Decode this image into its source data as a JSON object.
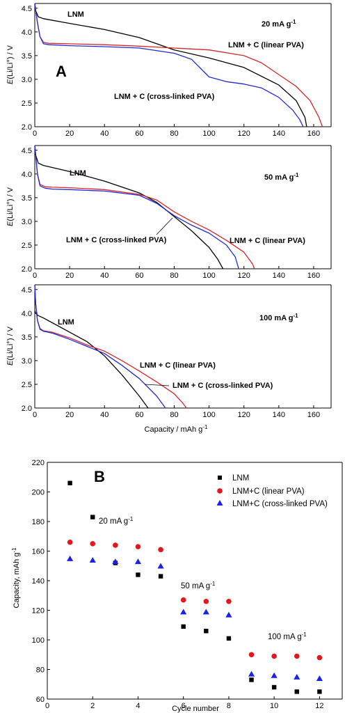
{
  "chart_data": [
    {
      "type": "line",
      "panel": "A",
      "rate_label": "20 mA g-1",
      "ylabel": "E(Li/Li+) / V",
      "xlim": [
        0,
        170
      ],
      "ylim": [
        2.0,
        4.6
      ],
      "xticks": [
        0,
        20,
        40,
        60,
        80,
        100,
        120,
        140,
        160
      ],
      "yticks": [
        2.0,
        2.5,
        3.0,
        3.5,
        4.0,
        4.5
      ],
      "series": [
        {
          "name": "LNM",
          "color": "#000000",
          "x": [
            0,
            0.5,
            2,
            5,
            20,
            40,
            60,
            80,
            100,
            120,
            140,
            150,
            155,
            156
          ],
          "y": [
            4.6,
            4.45,
            4.32,
            4.28,
            4.18,
            4.05,
            3.88,
            3.62,
            3.45,
            3.25,
            2.88,
            2.55,
            2.2,
            2.0
          ]
        },
        {
          "name": "LNM + C (linear PVA)",
          "color": "#d62728",
          "x": [
            0,
            0.5,
            1.5,
            3,
            5,
            8,
            20,
            40,
            60,
            80,
            100,
            120,
            130,
            140,
            150,
            158,
            163,
            165
          ],
          "y": [
            4.6,
            4.45,
            4.2,
            3.9,
            3.78,
            3.76,
            3.75,
            3.73,
            3.7,
            3.66,
            3.62,
            3.5,
            3.35,
            3.1,
            2.85,
            2.55,
            2.2,
            2.0
          ]
        },
        {
          "name": "LNM + C (cross-linked PVA)",
          "color": "#1f2ad6",
          "x": [
            0,
            0.5,
            1.5,
            3,
            5,
            8,
            20,
            40,
            60,
            80,
            90,
            100,
            110,
            120,
            130,
            140,
            148,
            152,
            154
          ],
          "y": [
            4.6,
            4.45,
            4.2,
            3.9,
            3.75,
            3.73,
            3.71,
            3.69,
            3.66,
            3.55,
            3.42,
            3.05,
            2.95,
            2.9,
            2.82,
            2.62,
            2.35,
            2.15,
            2.0
          ]
        }
      ],
      "annotations": [
        "LNM",
        "20 mA g-1",
        "LNM + C (linear PVA)",
        "LNM + C (cross-linked PVA)"
      ]
    },
    {
      "type": "line",
      "panel": "",
      "rate_label": "50 mA g-1",
      "ylabel": "E(Li/Li+) / V",
      "xlim": [
        0,
        170
      ],
      "ylim": [
        2.0,
        4.6
      ],
      "xticks": [
        0,
        20,
        40,
        60,
        80,
        100,
        120,
        140,
        160
      ],
      "yticks": [
        2.0,
        2.5,
        3.0,
        3.5,
        4.0,
        4.5
      ],
      "series": [
        {
          "name": "LNM",
          "color": "#000000",
          "x": [
            0,
            0.5,
            2,
            5,
            20,
            40,
            60,
            70,
            80,
            90,
            100,
            105,
            108
          ],
          "y": [
            4.6,
            4.4,
            4.23,
            4.18,
            4.05,
            3.85,
            3.6,
            3.4,
            3.1,
            2.8,
            2.45,
            2.2,
            2.0
          ]
        },
        {
          "name": "LNM + C (linear PVA)",
          "color": "#d62728",
          "x": [
            0,
            0.5,
            1.5,
            3,
            6,
            10,
            20,
            40,
            60,
            70,
            80,
            90,
            100,
            110,
            120,
            125,
            126
          ],
          "y": [
            4.6,
            4.4,
            4.0,
            3.78,
            3.73,
            3.72,
            3.71,
            3.67,
            3.57,
            3.45,
            3.2,
            3.0,
            2.82,
            2.6,
            2.35,
            2.1,
            2.0
          ]
        },
        {
          "name": "LNM + C (cross-linked PVA)",
          "color": "#1f2ad6",
          "x": [
            0,
            0.5,
            1.5,
            3,
            6,
            10,
            20,
            40,
            60,
            70,
            80,
            90,
            100,
            110,
            115,
            117
          ],
          "y": [
            4.6,
            4.4,
            4.0,
            3.75,
            3.7,
            3.68,
            3.67,
            3.64,
            3.55,
            3.38,
            3.12,
            2.92,
            2.75,
            2.5,
            2.25,
            2.0
          ]
        }
      ],
      "annotations": [
        "LNM",
        "50 mA g-1",
        "LNM + C (cross-linked PVA)",
        "LNM + C (linear PVA)"
      ]
    },
    {
      "type": "line",
      "panel": "",
      "rate_label": "100 mA g-1",
      "ylabel": "E(Li/Li+) / V",
      "xlabel": "Capacity / mAh g-1",
      "xlim": [
        0,
        170
      ],
      "ylim": [
        2.0,
        4.6
      ],
      "xticks": [
        0,
        20,
        40,
        60,
        80,
        100,
        120,
        140,
        160
      ],
      "yticks": [
        2.0,
        2.5,
        3.0,
        3.5,
        4.0,
        4.5
      ],
      "series": [
        {
          "name": "LNM",
          "color": "#000000",
          "x": [
            0,
            0.5,
            2,
            5,
            10,
            20,
            30,
            40,
            50,
            60,
            65
          ],
          "y": [
            4.05,
            4.0,
            3.95,
            3.9,
            3.8,
            3.6,
            3.4,
            3.1,
            2.7,
            2.25,
            2.0
          ]
        },
        {
          "name": "LNM + C (linear PVA)",
          "color": "#d62728",
          "x": [
            0,
            0.5,
            1.5,
            3,
            5,
            10,
            20,
            30,
            40,
            50,
            60,
            70,
            80,
            85,
            87
          ],
          "y": [
            4.6,
            4.2,
            3.85,
            3.68,
            3.63,
            3.6,
            3.48,
            3.33,
            3.2,
            3.0,
            2.78,
            2.55,
            2.3,
            2.1,
            2.0
          ]
        },
        {
          "name": "LNM + C (cross-linked PVA)",
          "color": "#1f2ad6",
          "x": [
            0,
            0.5,
            1.5,
            3,
            5,
            10,
            20,
            30,
            40,
            50,
            60,
            70,
            75
          ],
          "y": [
            4.6,
            4.2,
            3.85,
            3.66,
            3.62,
            3.58,
            3.45,
            3.3,
            3.15,
            2.9,
            2.62,
            2.25,
            2.0
          ]
        }
      ],
      "annotations": [
        "LNM",
        "100 mA g-1",
        "LNM + C (linear PVA)",
        "LNM + C (cross-linked PVA)"
      ]
    },
    {
      "type": "scatter",
      "panel": "B",
      "xlabel": "Cycle number",
      "ylabel": "Capacity, mAh g-1",
      "xlim": [
        0,
        13
      ],
      "ylim": [
        60,
        220
      ],
      "xticks": [
        0,
        2,
        4,
        6,
        8,
        10,
        12
      ],
      "yticks": [
        60,
        80,
        100,
        120,
        140,
        160,
        180,
        200,
        220
      ],
      "legend_position": "top-right",
      "series": [
        {
          "name": "LNM",
          "marker": "square",
          "color": "#000000",
          "x": [
            1,
            2,
            3,
            4,
            5,
            6,
            7,
            8,
            9,
            10,
            11,
            12
          ],
          "y": [
            206,
            183,
            152,
            144,
            143,
            109,
            106,
            101,
            73,
            68,
            65,
            65
          ]
        },
        {
          "name": "LNM+C (linear PVA)",
          "marker": "circle",
          "color": "#e8141c",
          "x": [
            1,
            2,
            3,
            4,
            5,
            6,
            7,
            8,
            9,
            10,
            11,
            12
          ],
          "y": [
            166,
            165,
            164,
            163,
            161,
            127,
            126,
            126,
            90,
            89,
            89,
            88
          ]
        },
        {
          "name": "LNM+C (cross-linked PVA)",
          "marker": "triangle",
          "color": "#1a22e6",
          "x": [
            1,
            2,
            3,
            4,
            5,
            6,
            7,
            8,
            9,
            10,
            11,
            12
          ],
          "y": [
            155,
            154,
            153,
            153,
            150,
            119,
            119,
            117,
            77,
            76,
            75,
            74
          ]
        }
      ],
      "annotations": [
        "20 mA g-1",
        "50 mA g-1",
        "100 mA g-1"
      ]
    }
  ]
}
